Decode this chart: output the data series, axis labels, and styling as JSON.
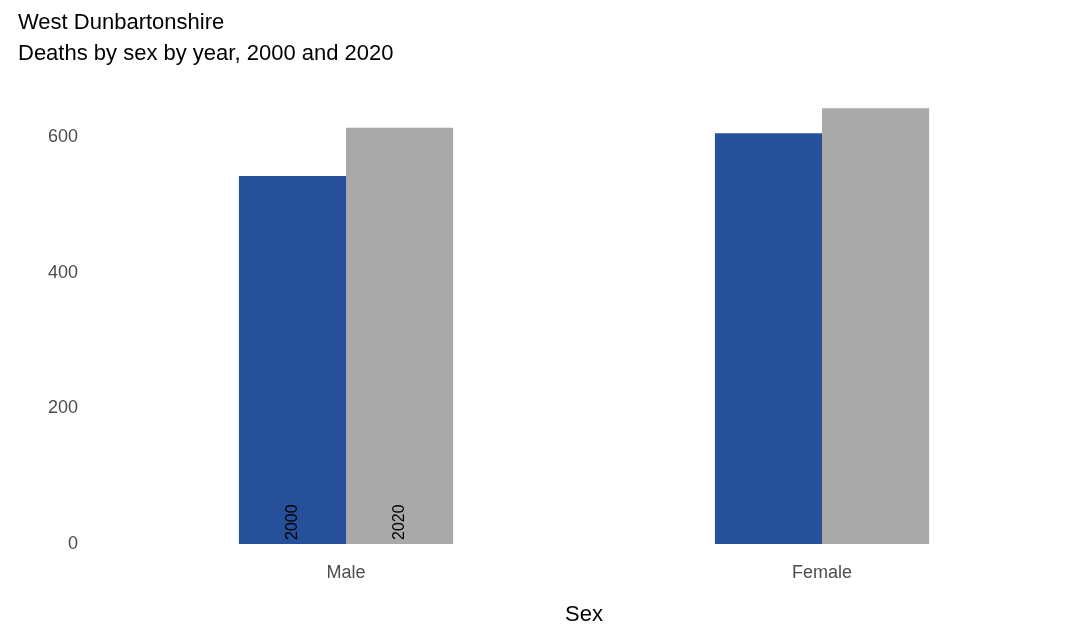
{
  "chart_data": {
    "type": "bar",
    "title": "West Dunbartonshire",
    "subtitle": "Deaths by sex by year, 2000 and 2020",
    "xlabel": "Sex",
    "categories": [
      "Male",
      "Female"
    ],
    "series": [
      {
        "name": "2000",
        "color": "#27509b",
        "values": [
          543,
          606
        ]
      },
      {
        "name": "2020",
        "color": "#a9a9a9",
        "values": [
          614,
          643
        ]
      }
    ],
    "ylim": [
      0,
      645
    ],
    "yticks": [
      0,
      200,
      400,
      600
    ],
    "grid": false,
    "legend": false
  }
}
